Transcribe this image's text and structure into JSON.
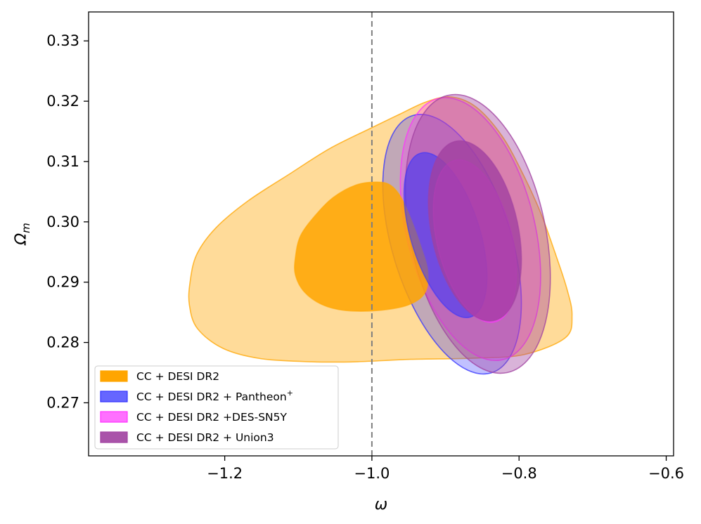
{
  "chart_data": {
    "type": "contour",
    "title": "",
    "xlabel": "ω",
    "ylabel_base": "Ω",
    "ylabel_sub": "m",
    "xlim": [
      -1.385,
      -0.59
    ],
    "ylim": [
      0.2612,
      0.3348
    ],
    "x_ticks": [
      -1.2,
      -1.0,
      -0.8,
      -0.6
    ],
    "x_tick_labels": [
      "−1.2",
      "−1.0",
      "−0.8",
      "−0.6"
    ],
    "y_ticks": [
      0.27,
      0.28,
      0.29,
      0.3,
      0.31,
      0.32,
      0.33
    ],
    "y_tick_labels": [
      "0.27",
      "0.28",
      "0.29",
      "0.30",
      "0.31",
      "0.32",
      "0.33"
    ],
    "reference_line": {
      "x": -1.0,
      "style": "dashed",
      "color": "#7f7f7f"
    },
    "legend_position": "lower-left",
    "series": [
      {
        "name": "CC + DESI DR2",
        "legend_label": "CC + DESI DR2",
        "color": "#FFA500",
        "contours": [
          {
            "level": "2sigma",
            "opacity": 0.4,
            "points": [
              [
                -1.247,
                0.2901
              ],
              [
                -1.238,
                0.2946
              ],
              [
                -1.212,
                0.299
              ],
              [
                -1.168,
                0.3035
              ],
              [
                -1.111,
                0.308
              ],
              [
                -1.058,
                0.3121
              ],
              [
                -1.002,
                0.3155
              ],
              [
                -0.963,
                0.3178
              ],
              [
                -0.926,
                0.3199
              ],
              [
                -0.892,
                0.3207
              ],
              [
                -0.858,
                0.319
              ],
              [
                -0.823,
                0.3142
              ],
              [
                -0.795,
                0.308
              ],
              [
                -0.771,
                0.3016
              ],
              [
                -0.752,
                0.2952
              ],
              [
                -0.735,
                0.2889
              ],
              [
                -0.728,
                0.2845
              ],
              [
                -0.737,
                0.2808
              ],
              [
                -0.793,
                0.278
              ],
              [
                -0.861,
                0.2774
              ],
              [
                -0.947,
                0.2772
              ],
              [
                -1.021,
                0.2768
              ],
              [
                -1.082,
                0.2768
              ],
              [
                -1.15,
                0.2773
              ],
              [
                -1.202,
                0.279
              ],
              [
                -1.237,
                0.2823
              ],
              [
                -1.248,
                0.2862
              ]
            ]
          },
          {
            "level": "1sigma",
            "opacity": 0.85,
            "points": [
              [
                -1.104,
                0.2941
              ],
              [
                -1.097,
                0.2977
              ],
              [
                -1.076,
                0.3012
              ],
              [
                -1.052,
                0.3041
              ],
              [
                -1.022,
                0.3061
              ],
              [
                -0.994,
                0.3066
              ],
              [
                -0.975,
                0.3061
              ],
              [
                -0.96,
                0.304
              ],
              [
                -0.946,
                0.3002
              ],
              [
                -0.933,
                0.2958
              ],
              [
                -0.924,
                0.2918
              ],
              [
                -0.928,
                0.2882
              ],
              [
                -0.951,
                0.2862
              ],
              [
                -0.992,
                0.2853
              ],
              [
                -1.036,
                0.2853
              ],
              [
                -1.068,
                0.2863
              ],
              [
                -1.092,
                0.2884
              ],
              [
                -1.104,
                0.2912
              ]
            ]
          }
        ]
      },
      {
        "name": "CC + DESI DR2 + Pantheon+",
        "legend_label": "CC + DESI DR2 + Pantheon",
        "legend_superscript": "+",
        "color": "#3333FF",
        "contours": [
          {
            "level": "2sigma",
            "shape": "ellipse",
            "cx": -0.891,
            "cy": 0.2963,
            "rx": 0.081,
            "ry": 0.0223,
            "rotation_deg": -17,
            "opacity": 0.3
          },
          {
            "level": "1sigma",
            "shape": "ellipse",
            "cx": -0.9,
            "cy": 0.2978,
            "rx": 0.047,
            "ry": 0.0142,
            "rotation_deg": -17,
            "opacity": 0.55
          }
        ]
      },
      {
        "name": "CC + DESI DR2 +DES-SN5Y",
        "legend_label": "CC + DESI DR2 +DES-SN5Y",
        "color": "#FF33FF",
        "contours": [
          {
            "level": "2sigma",
            "shape": "ellipse",
            "cx": -0.866,
            "cy": 0.2988,
            "rx": 0.087,
            "ry": 0.0223,
            "rotation_deg": -14,
            "opacity": 0.3
          },
          {
            "level": "1sigma",
            "shape": "ellipse",
            "cx": -0.86,
            "cy": 0.2968,
            "rx": 0.051,
            "ry": 0.0138,
            "rotation_deg": -14,
            "opacity": 0.5
          }
        ]
      },
      {
        "name": "CC + DESI DR2 + Union3",
        "legend_label": "CC + DESI DR2 + Union3",
        "color": "#A040A0",
        "contours": [
          {
            "level": "2sigma",
            "shape": "ellipse",
            "cx": -0.856,
            "cy": 0.298,
            "rx": 0.092,
            "ry": 0.0235,
            "rotation_deg": -12,
            "opacity": 0.4
          },
          {
            "level": "1sigma",
            "shape": "ellipse",
            "cx": -0.86,
            "cy": 0.2985,
            "rx": 0.059,
            "ry": 0.0152,
            "rotation_deg": -12,
            "opacity": 0.8
          }
        ]
      }
    ]
  }
}
